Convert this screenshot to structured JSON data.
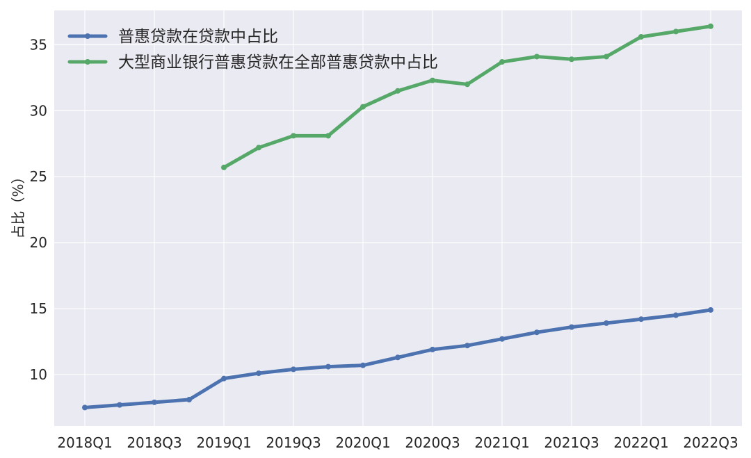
{
  "chart_data": {
    "type": "line",
    "ylabel": "占比（%）",
    "categories": [
      "2018Q1",
      "2018Q2",
      "2018Q3",
      "2018Q4",
      "2019Q1",
      "2019Q2",
      "2019Q3",
      "2019Q4",
      "2020Q1",
      "2020Q2",
      "2020Q3",
      "2020Q4",
      "2021Q1",
      "2021Q2",
      "2021Q3",
      "2021Q4",
      "2022Q1",
      "2022Q2",
      "2022Q3"
    ],
    "xtick_labels": [
      "2018Q1",
      "2018Q3",
      "2019Q1",
      "2019Q3",
      "2020Q1",
      "2020Q3",
      "2021Q1",
      "2021Q3",
      "2022Q1",
      "2022Q3"
    ],
    "yticks": [
      10,
      15,
      20,
      25,
      30,
      35
    ],
    "ylim": [
      6.1,
      37.6
    ],
    "grid": true,
    "legend_position": "upper-left",
    "series": [
      {
        "name": "普惠贷款在贷款中占比",
        "color": "#4c72b0",
        "values": [
          7.5,
          7.7,
          7.9,
          8.1,
          9.7,
          10.1,
          10.4,
          10.6,
          10.7,
          11.3,
          11.9,
          12.2,
          12.7,
          13.2,
          13.6,
          13.9,
          14.2,
          14.5,
          14.9
        ]
      },
      {
        "name": "大型商业银行普惠贷款在全部普惠贷款中占比",
        "color": "#55a868",
        "values": [
          null,
          null,
          null,
          null,
          25.7,
          27.2,
          28.1,
          28.1,
          30.3,
          31.5,
          32.3,
          32.0,
          33.7,
          34.1,
          33.9,
          34.1,
          35.6,
          36.0,
          36.4
        ]
      }
    ]
  }
}
